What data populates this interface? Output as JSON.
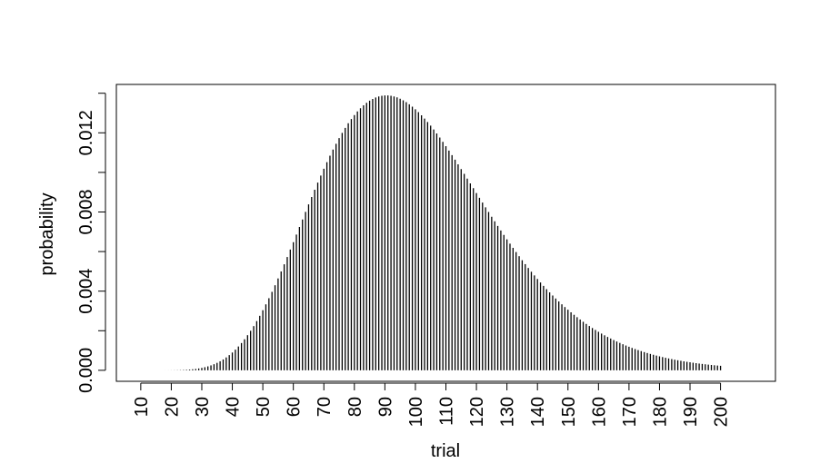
{
  "chart_data": {
    "type": "histogram-lines",
    "xlabel": "trial",
    "ylabel": "probability",
    "color": "#000000",
    "x": [
      10,
      11,
      12,
      13,
      14,
      15,
      16,
      17,
      18,
      19,
      20,
      21,
      22,
      23,
      24,
      25,
      26,
      27,
      28,
      29,
      30,
      31,
      32,
      33,
      34,
      35,
      36,
      37,
      38,
      39,
      40,
      41,
      42,
      43,
      44,
      45,
      46,
      47,
      48,
      49,
      50,
      51,
      52,
      53,
      54,
      55,
      56,
      57,
      58,
      59,
      60,
      61,
      62,
      63,
      64,
      65,
      66,
      67,
      68,
      69,
      70,
      71,
      72,
      73,
      74,
      75,
      76,
      77,
      78,
      79,
      80,
      81,
      82,
      83,
      84,
      85,
      86,
      87,
      88,
      89,
      90,
      91,
      92,
      93,
      94,
      95,
      96,
      97,
      98,
      99,
      100,
      101,
      102,
      103,
      104,
      105,
      106,
      107,
      108,
      109,
      110,
      111,
      112,
      113,
      114,
      115,
      116,
      117,
      118,
      119,
      120,
      121,
      122,
      123,
      124,
      125,
      126,
      127,
      128,
      129,
      130,
      131,
      132,
      133,
      134,
      135,
      136,
      137,
      138,
      139,
      140,
      141,
      142,
      143,
      144,
      145,
      146,
      147,
      148,
      149,
      150,
      151,
      152,
      153,
      154,
      155,
      156,
      157,
      158,
      159,
      160,
      161,
      162,
      163,
      164,
      165,
      166,
      167,
      168,
      169,
      170,
      171,
      172,
      173,
      174,
      175,
      176,
      177,
      178,
      179,
      180,
      181,
      182,
      183,
      184,
      185,
      186,
      187,
      188,
      189,
      190,
      191,
      192,
      193,
      194,
      195,
      196,
      197,
      198,
      199,
      200
    ],
    "values": [
      1e-10,
      9e-10,
      4.455e-09,
      1.604e-08,
      4.691e-08,
      1.182e-07,
      2.66e-07,
      5.472e-07,
      1.0465e-06,
      1.8837e-06,
      3.221e-06,
      5.271e-06,
      8.302e-06,
      1.2645e-05,
      1.8696e-05,
      2.6922e-05,
      3.786e-05,
      5.211e-05,
      7.035e-05,
      9.331e-05,
      0.00012177,
      0.00015656,
      0.00019855,
      0.00024862,
      0.00030767,
      0.00037659,
      0.00045625,
      0.0005475,
      0.0006511,
      0.0007679,
      0.0008984,
      0.0010433,
      0.0012031,
      0.0013781,
      0.0015686,
      0.0017748,
      0.0019967,
      0.0022341,
      0.0024869,
      0.0027547,
      0.0030371,
      0.0033334,
      0.0036429,
      0.0039648,
      0.0042982,
      0.0046421,
      0.0049953,
      0.0053567,
      0.005725,
      0.0060989,
      0.006477,
      0.006858,
      0.0072405,
      0.007623,
      0.0080042,
      0.0083826,
      0.0087568,
      0.0091255,
      0.0094874,
      0.0098412,
      0.0101856,
      0.0105196,
      0.010842,
      0.0111518,
      0.011448,
      0.0117298,
      0.0119964,
      0.0122471,
      0.0124813,
      0.0126984,
      0.0128979,
      0.0130795,
      0.013243,
      0.0133881,
      0.0135148,
      0.0136229,
      0.0137125,
      0.0137837,
      0.0138368,
      0.0138718,
      0.0138891,
      0.0138891,
      0.0138722,
      0.0138388,
      0.0137894,
      0.0137245,
      0.0136447,
      0.0135506,
      0.0134429,
      0.0133221,
      0.0131889,
      0.0130439,
      0.0128879,
      0.0127216,
      0.0125457,
      0.0123608,
      0.0121677,
      0.0119671,
      0.0117595,
      0.0115457,
      0.0113263,
      0.011102,
      0.0108734,
      0.0106412,
      0.0104058,
      0.0101679,
      0.0099282,
      0.0096869,
      0.0094447,
      0.0092021,
      0.0089595,
      0.0087173,
      0.008476,
      0.008236,
      0.0079976,
      0.0077611,
      0.007527,
      0.0072954,
      0.0070666,
      0.006841,
      0.0066187,
      0.0063999,
      0.0061848,
      0.0059736,
      0.0057664,
      0.0055634,
      0.0053647,
      0.0051704,
      0.0049806,
      0.0047953,
      0.0046145,
      0.0044384,
      0.0042669,
      0.0041001,
      0.0039379,
      0.0037804,
      0.0036275,
      0.0034792,
      0.0033355,
      0.0031963,
      0.0030616,
      0.0029313,
      0.0028054,
      0.0026838,
      0.0025664,
      0.0024531,
      0.0023439,
      0.0022387,
      0.0021373,
      0.0020398,
      0.001946,
      0.0018558,
      0.0017691,
      0.0016858,
      0.0016059,
      0.0015292,
      0.0014557,
      0.0013852,
      0.0013177,
      0.0012531,
      0.0011912,
      0.001132,
      0.0010754,
      0.0010213,
      0.0009696,
      0.0009202,
      0.0008731,
      0.0008281,
      0.0007852,
      0.0007443,
      0.0007053,
      0.0006682,
      0.0006328,
      0.0005992,
      0.0005672,
      0.0005367,
      0.0005077,
      0.0004802,
      0.000454,
      0.0004291,
      0.0004055,
      0.0003831,
      0.0003618,
      0.0003416,
      0.0003225,
      0.0003044,
      0.0002872,
      0.0002709,
      0.0002555,
      0.0002409,
      0.0002271
    ],
    "xlim": [
      2,
      218
    ],
    "xticks": [
      10,
      20,
      30,
      40,
      50,
      60,
      70,
      80,
      90,
      100,
      110,
      120,
      130,
      140,
      150,
      160,
      170,
      180,
      190,
      200
    ],
    "ylim": [
      -0.000556,
      0.014445
    ],
    "yticks": [
      {
        "value": 0,
        "label": "0.000"
      },
      {
        "value": 0.002,
        "label": null
      },
      {
        "value": 0.004,
        "label": "0.004"
      },
      {
        "value": 0.006,
        "label": null
      },
      {
        "value": 0.008,
        "label": "0.008"
      },
      {
        "value": 0.01,
        "label": null
      },
      {
        "value": 0.012,
        "label": "0.012"
      },
      {
        "value": 0.014,
        "label": null
      }
    ]
  }
}
